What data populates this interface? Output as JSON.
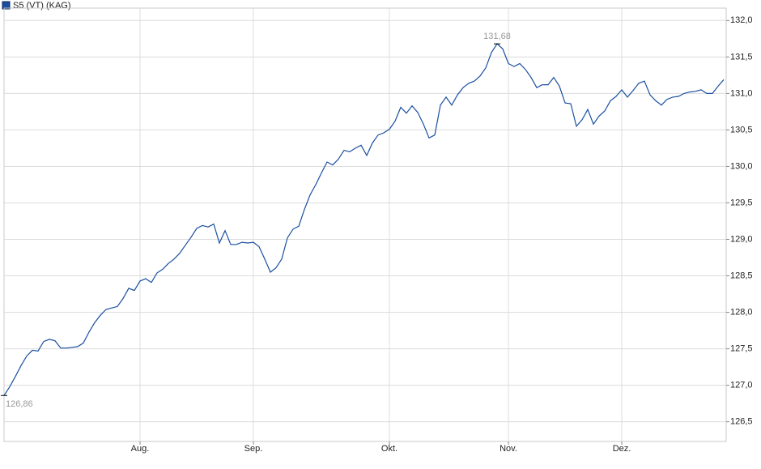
{
  "chart_data": {
    "type": "line",
    "legend": "S5 (VT) (KAG)",
    "categories": [
      null,
      null,
      null,
      null,
      null,
      null,
      null,
      null,
      null,
      null,
      null,
      null,
      null,
      null,
      null,
      null,
      null,
      null,
      null,
      null,
      null,
      null,
      null,
      null,
      "Aug.",
      null,
      null,
      null,
      null,
      null,
      null,
      null,
      null,
      null,
      null,
      null,
      null,
      null,
      null,
      null,
      null,
      null,
      null,
      null,
      "Sep.",
      null,
      null,
      null,
      null,
      null,
      null,
      null,
      null,
      null,
      null,
      null,
      null,
      null,
      null,
      null,
      null,
      null,
      null,
      null,
      null,
      null,
      null,
      null,
      "Okt.",
      null,
      null,
      null,
      null,
      null,
      null,
      null,
      null,
      null,
      null,
      null,
      null,
      null,
      null,
      null,
      null,
      null,
      null,
      null,
      null,
      "Nov.",
      null,
      null,
      null,
      null,
      null,
      null,
      null,
      null,
      null,
      null,
      null,
      null,
      null,
      null,
      null,
      null,
      null,
      null,
      null,
      "Dez.",
      null,
      null,
      null,
      null,
      null,
      null,
      null,
      null,
      null,
      null,
      null,
      null,
      null,
      null,
      null,
      null,
      null,
      null
    ],
    "series": [
      {
        "name": "S5 (VT) (KAG)",
        "color": "#1a4fa0",
        "values": [
          126.86,
          126.98,
          127.12,
          127.27,
          127.4,
          127.48,
          127.47,
          127.6,
          127.63,
          127.61,
          127.51,
          127.51,
          127.52,
          127.53,
          127.58,
          127.73,
          127.86,
          127.96,
          128.04,
          128.06,
          128.08,
          128.19,
          128.33,
          128.3,
          128.43,
          128.46,
          128.41,
          128.54,
          128.59,
          128.67,
          128.73,
          128.81,
          128.92,
          129.03,
          129.15,
          129.19,
          129.17,
          129.21,
          128.95,
          129.12,
          128.93,
          128.93,
          128.96,
          128.95,
          128.96,
          128.9,
          128.73,
          128.55,
          128.61,
          128.73,
          129.02,
          129.14,
          129.18,
          129.41,
          129.61,
          129.75,
          129.91,
          130.06,
          130.02,
          130.1,
          130.22,
          130.2,
          130.25,
          130.29,
          130.15,
          130.32,
          130.43,
          130.46,
          130.51,
          130.62,
          130.81,
          130.73,
          130.83,
          130.74,
          130.58,
          130.39,
          130.43,
          130.84,
          130.95,
          130.84,
          130.98,
          131.08,
          131.14,
          131.17,
          131.24,
          131.35,
          131.56,
          131.68,
          131.61,
          131.41,
          131.37,
          131.41,
          131.33,
          131.22,
          131.08,
          131.12,
          131.12,
          131.22,
          131.1,
          130.87,
          130.86,
          130.55,
          130.64,
          130.78,
          130.58,
          130.69,
          130.76,
          130.9,
          130.96,
          131.05,
          130.95,
          131.04,
          131.14,
          131.17,
          130.98,
          130.9,
          130.84,
          130.92,
          130.95,
          130.96,
          131.0,
          131.02,
          131.03,
          131.05,
          131.0,
          131.0,
          131.1,
          131.19
        ]
      }
    ],
    "annotations": [
      {
        "value": 131.68,
        "label": "131,68"
      },
      {
        "value": 126.86,
        "label": "126,86"
      }
    ],
    "ylim": [
      126.23,
      132.17
    ],
    "yticks": [
      {
        "value": 126.5,
        "label": "126,5"
      },
      {
        "value": 127,
        "label": "127,0"
      },
      {
        "value": 127.5,
        "label": "127,5"
      },
      {
        "value": 128,
        "label": "128,0"
      },
      {
        "value": 128.5,
        "label": "128,5"
      },
      {
        "value": 129,
        "label": "129,0"
      },
      {
        "value": 129.5,
        "label": "129,5"
      },
      {
        "value": 130,
        "label": "130,0"
      },
      {
        "value": 130.5,
        "label": "130,5"
      },
      {
        "value": 131,
        "label": "131,0"
      },
      {
        "value": 131.5,
        "label": "131,5"
      },
      {
        "value": 132,
        "label": "132,0"
      }
    ],
    "grid": true
  }
}
